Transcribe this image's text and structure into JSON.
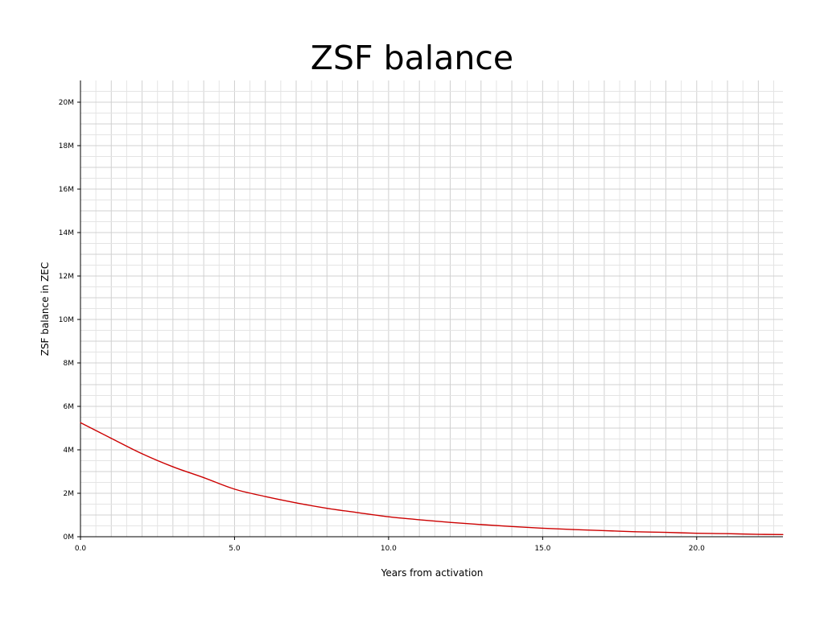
{
  "chart_data": {
    "type": "line",
    "title": "ZSF balance",
    "xlabel": "Years from activation",
    "ylabel": "ZSF balance in ZEC",
    "xlim": [
      0,
      22.8
    ],
    "ylim": [
      0,
      21000000
    ],
    "x_ticks": [
      {
        "value": 0,
        "label": "0.0"
      },
      {
        "value": 5,
        "label": "5.0"
      },
      {
        "value": 10,
        "label": "10.0"
      },
      {
        "value": 15,
        "label": "15.0"
      },
      {
        "value": 20,
        "label": "20.0"
      }
    ],
    "y_ticks": [
      {
        "value": 0,
        "label": "0M"
      },
      {
        "value": 2000000,
        "label": "2M"
      },
      {
        "value": 4000000,
        "label": "4M"
      },
      {
        "value": 6000000,
        "label": "6M"
      },
      {
        "value": 8000000,
        "label": "8M"
      },
      {
        "value": 10000000,
        "label": "10M"
      },
      {
        "value": 12000000,
        "label": "12M"
      },
      {
        "value": 14000000,
        "label": "14M"
      },
      {
        "value": 16000000,
        "label": "16M"
      },
      {
        "value": 18000000,
        "label": "18M"
      },
      {
        "value": 20000000,
        "label": "20M"
      }
    ],
    "grid": true,
    "series": [
      {
        "color": "#cc0000",
        "x": [
          0,
          1,
          2,
          3,
          4,
          5,
          6,
          7,
          8,
          9,
          10,
          11,
          12,
          13,
          14,
          15,
          16,
          17,
          18,
          19,
          20,
          21,
          22,
          22.8
        ],
        "y": [
          5250000,
          4530000,
          3820000,
          3220000,
          2720000,
          2190000,
          1850000,
          1560000,
          1310000,
          1110000,
          920000,
          780000,
          660000,
          560000,
          470000,
          390000,
          330000,
          280000,
          230000,
          200000,
          160000,
          140000,
          110000,
          100000
        ]
      }
    ]
  }
}
